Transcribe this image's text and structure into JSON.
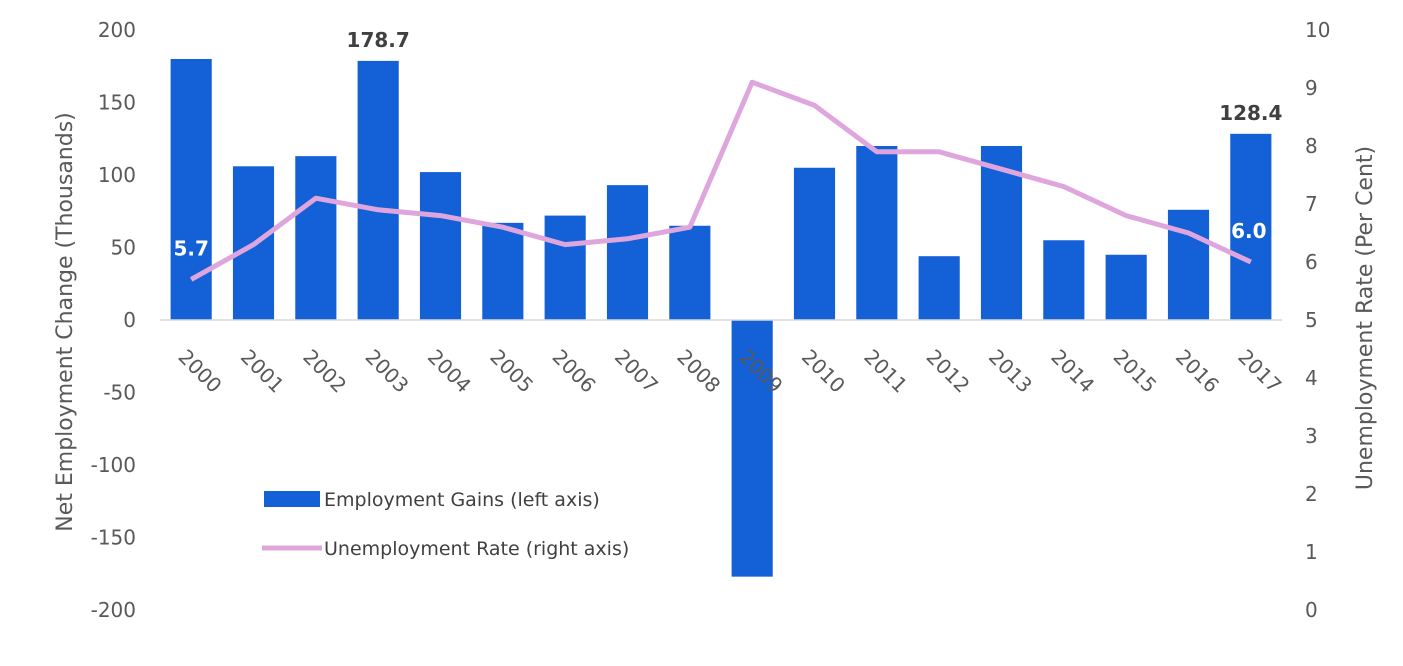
{
  "chart_data": {
    "type": "bar",
    "categories": [
      "2000",
      "2001",
      "2002",
      "2003",
      "2004",
      "2005",
      "2006",
      "2007",
      "2008",
      "2009",
      "2010",
      "2011",
      "2012",
      "2013",
      "2014",
      "2015",
      "2016",
      "2017"
    ],
    "series": [
      {
        "name": "Employment Gains (left axis)",
        "type": "bar",
        "axis": "left",
        "color": "#1460D6",
        "values": [
          180,
          106,
          113,
          178.7,
          102,
          67,
          72,
          93,
          65,
          -177,
          105,
          120,
          44,
          120,
          55,
          45,
          76,
          128.4
        ]
      },
      {
        "name": "Unemployment Rate (right axis)",
        "type": "line",
        "axis": "right",
        "color": "#DFA6DD",
        "values": [
          5.7,
          6.3,
          7.1,
          6.9,
          6.8,
          6.6,
          6.3,
          6.4,
          6.6,
          9.1,
          8.7,
          7.9,
          7.9,
          7.6,
          7.3,
          6.8,
          6.5,
          6.0
        ]
      }
    ],
    "ylabel": "Net Employment Change (Thousands)",
    "y2label": "Unemployment Rate (Per Cent)",
    "ylim": [
      -200,
      200
    ],
    "y2lim": [
      0,
      10
    ],
    "yticks": [
      "200",
      "150",
      "100",
      "50",
      "0",
      "-50",
      "-100",
      "-150",
      "-200"
    ],
    "y2ticks": [
      "10",
      "9",
      "8",
      "7",
      "6",
      "5",
      "4",
      "3",
      "2",
      "1",
      "0"
    ],
    "data_labels": [
      {
        "series": 0,
        "index": 3,
        "text": "178.7",
        "color": "#404040"
      },
      {
        "series": 0,
        "index": 17,
        "text": "128.4",
        "color": "#404040"
      },
      {
        "series": 1,
        "index": 0,
        "text": "5.7",
        "color": "#ffffff"
      },
      {
        "series": 1,
        "index": 17,
        "text": "6.0",
        "color": "#ffffff"
      }
    ],
    "legend_position": "lower-left inside plot",
    "grid": false
  }
}
